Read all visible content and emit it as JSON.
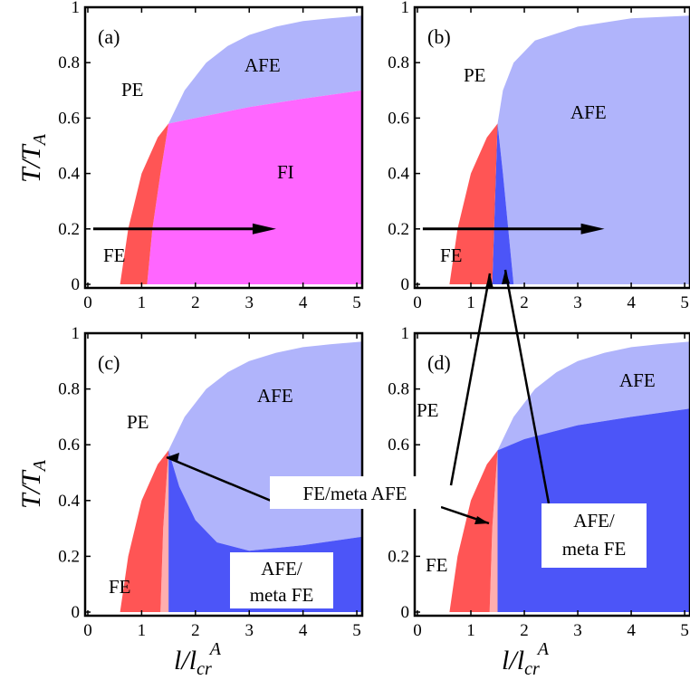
{
  "figure": {
    "ylabel": "T/T_A",
    "xlabel": "l/l_cr^A",
    "colors": {
      "PE": "#ffffff",
      "FE": "#ff5555",
      "FI": "#ff66ff",
      "AFE": "#b0b4fb",
      "AFE_meta_FE": "#4c55f8",
      "FE_meta_AFE": "#ffaeae",
      "frame": "#000000"
    }
  },
  "chart_data": [
    {
      "panel": "(a)",
      "type": "area",
      "xlim": [
        0,
        5.1
      ],
      "ylim": [
        0,
        1
      ],
      "xticks": [
        "0",
        "1",
        "2",
        "3",
        "4",
        "5"
      ],
      "yticks": [
        "0",
        "0.2",
        "0.4",
        "0.6",
        "0.8",
        "1"
      ],
      "regions": [
        "PE",
        "FE",
        "FI",
        "AFE"
      ],
      "arrow": {
        "x_from": 0.1,
        "x_to": 3.5,
        "y": 0.2
      },
      "boundaries": {
        "PE_AFE_x": [
          1.5,
          1.8,
          2.2,
          2.6,
          3.0,
          3.5,
          4.0,
          4.5,
          5.1
        ],
        "PE_AFE_y": [
          0.58,
          0.7,
          0.8,
          0.86,
          0.9,
          0.93,
          0.95,
          0.96,
          0.97
        ],
        "AFE_FI_x": [
          1.5,
          2.0,
          3.0,
          4.0,
          5.1
        ],
        "AFE_FI_y": [
          0.58,
          0.6,
          0.64,
          0.67,
          0.7
        ],
        "FE_left_x": [
          0.6,
          0.75,
          1.0,
          1.3,
          1.5
        ],
        "FE_left_y": [
          0.0,
          0.2,
          0.4,
          0.53,
          0.58
        ],
        "FE_FI_x": [
          1.1,
          1.2,
          1.35,
          1.5
        ],
        "FE_FI_y": [
          0.0,
          0.2,
          0.4,
          0.58
        ]
      }
    },
    {
      "panel": "(b)",
      "type": "area",
      "xlim": [
        0,
        5.1
      ],
      "ylim": [
        0,
        1
      ],
      "xticks": [
        "0",
        "1",
        "2",
        "3",
        "4",
        "5"
      ],
      "yticks": [
        "0",
        "0.2",
        "0.4",
        "0.6",
        "0.8",
        "1"
      ],
      "regions": [
        "PE",
        "AFE",
        "FE"
      ],
      "arrow": {
        "x_from": 0.1,
        "x_to": 3.5,
        "y": 0.2
      },
      "boundaries": {
        "PE_AFE_x": [
          1.5,
          1.6,
          1.8,
          2.2,
          3.0,
          4.0,
          5.1
        ],
        "PE_AFE_y": [
          0.58,
          0.7,
          0.8,
          0.88,
          0.93,
          0.96,
          0.97
        ],
        "FE_left_x": [
          0.6,
          0.75,
          1.0,
          1.3,
          1.5
        ],
        "FE_left_y": [
          0.0,
          0.2,
          0.4,
          0.53,
          0.58
        ],
        "FE_right_x": [
          1.4,
          1.45,
          1.5
        ],
        "FE_right_y": [
          0.0,
          0.3,
          0.58
        ],
        "AFE_metaFE_right_x": [
          1.8,
          1.7,
          1.6,
          1.5
        ],
        "AFE_metaFE_right_y": [
          0.0,
          0.2,
          0.4,
          0.58
        ]
      }
    },
    {
      "panel": "(c)",
      "type": "area",
      "xlim": [
        0,
        5.1
      ],
      "ylim": [
        0,
        1
      ],
      "xticks": [
        "0",
        "1",
        "2",
        "3",
        "4",
        "5"
      ],
      "yticks": [
        "0",
        "0.2",
        "0.4",
        "0.6",
        "0.8",
        "1"
      ],
      "regions": [
        "PE",
        "FE",
        "FE/meta AFE",
        "AFE",
        "AFE/ meta FE"
      ],
      "boundaries": {
        "PE_AFE_x": [
          1.5,
          1.8,
          2.2,
          2.6,
          3.0,
          3.5,
          4.0,
          4.5,
          5.1
        ],
        "PE_AFE_y": [
          0.58,
          0.7,
          0.8,
          0.86,
          0.9,
          0.93,
          0.95,
          0.96,
          0.97
        ],
        "AFE_metaFE_top_x": [
          1.5,
          1.7,
          2.0,
          2.4,
          3.0,
          4.0,
          5.1
        ],
        "AFE_metaFE_top_y": [
          0.58,
          0.45,
          0.33,
          0.25,
          0.22,
          0.24,
          0.27
        ],
        "FE_left_x": [
          0.6,
          0.75,
          1.0,
          1.3,
          1.5
        ],
        "FE_left_y": [
          0.0,
          0.2,
          0.4,
          0.53,
          0.58
        ],
        "FE_metaAFE_left_x": [
          1.35,
          1.4,
          1.5
        ],
        "FE_metaAFE_left_y": [
          0.0,
          0.3,
          0.58
        ],
        "FE_metaAFE_right_x": [
          1.5,
          1.5
        ],
        "FE_metaAFE_right_y": [
          0.0,
          0.58
        ]
      }
    },
    {
      "panel": "(d)",
      "type": "area",
      "xlim": [
        0,
        5.1
      ],
      "ylim": [
        0,
        1
      ],
      "xticks": [
        "0",
        "1",
        "2",
        "3",
        "4",
        "5"
      ],
      "yticks": [
        "0",
        "0.2",
        "0.4",
        "0.6",
        "0.8",
        "1"
      ],
      "regions": [
        "PE",
        "AFE",
        "FE",
        "AFE/ meta FE"
      ],
      "boundaries": {
        "PE_AFE_x": [
          1.5,
          1.8,
          2.2,
          2.6,
          3.0,
          3.5,
          4.0,
          4.5,
          5.1
        ],
        "PE_AFE_y": [
          0.58,
          0.7,
          0.8,
          0.86,
          0.9,
          0.93,
          0.95,
          0.96,
          0.97
        ],
        "AFE_metaFE_top_x": [
          1.5,
          2.0,
          3.0,
          4.0,
          5.1
        ],
        "AFE_metaFE_top_y": [
          0.58,
          0.62,
          0.67,
          0.7,
          0.73
        ],
        "FE_left_x": [
          0.6,
          0.75,
          1.0,
          1.3,
          1.5
        ],
        "FE_left_y": [
          0.0,
          0.2,
          0.4,
          0.53,
          0.58
        ],
        "FE_metaAFE_left_x": [
          1.35,
          1.4,
          1.5
        ],
        "FE_metaAFE_left_y": [
          0.0,
          0.3,
          0.58
        ],
        "FE_metaAFE_right_x": [
          1.5,
          1.5
        ],
        "FE_metaAFE_right_y": [
          0.0,
          0.58
        ]
      }
    }
  ],
  "labels": {
    "a": {
      "panel": "(a)",
      "PE": "PE",
      "AFE": "AFE",
      "FI": "FI",
      "FE": "FE"
    },
    "b": {
      "panel": "(b)",
      "PE": "PE",
      "AFE": "AFE",
      "FE": "FE"
    },
    "c": {
      "panel": "(c)",
      "PE": "PE",
      "AFE": "AFE",
      "FE": "FE",
      "AFE_meta_FE_1": "AFE/",
      "AFE_meta_FE_2": "meta FE"
    },
    "d": {
      "panel": "(d)",
      "PE": "PE",
      "AFE": "AFE",
      "FE": "FE",
      "AFE_meta_FE_1": "AFE/",
      "AFE_meta_FE_2": "meta FE"
    },
    "callout_fe_meta_afe": "FE/meta AFE",
    "ylabel_main": "T/T",
    "ylabel_sub": "A",
    "xlabel_main": "l/l",
    "xlabel_sub": "cr",
    "xlabel_sup": "A"
  }
}
